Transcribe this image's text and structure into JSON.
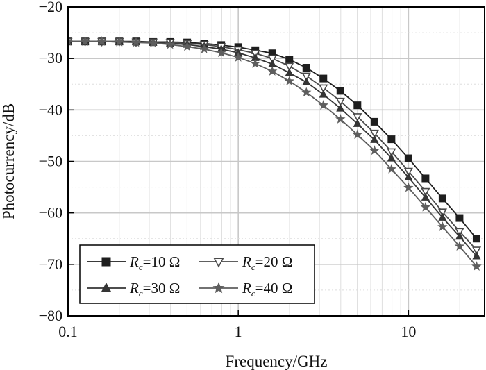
{
  "chart_data": {
    "type": "line",
    "title": "",
    "xlabel": "Frequency/GHz",
    "ylabel": "Photocurrency/dB",
    "x_scale": "log",
    "xlim": [
      0.1,
      28
    ],
    "ylim": [
      -80,
      -20
    ],
    "x_ticks": [
      0.1,
      1,
      10
    ],
    "x_tick_labels": [
      "0.1",
      "1",
      "10"
    ],
    "y_ticks": [
      -80,
      -70,
      -60,
      -50,
      -40,
      -30,
      -20
    ],
    "y_tick_labels": [
      "−80",
      "−70",
      "−60",
      "−50",
      "−40",
      "−30",
      "−20"
    ],
    "grid": true,
    "legend_position": "bottom-left",
    "x": [
      0.1,
      0.126,
      0.158,
      0.2,
      0.251,
      0.316,
      0.398,
      0.501,
      0.631,
      0.794,
      1.0,
      1.259,
      1.585,
      1.995,
      2.512,
      3.162,
      3.981,
      5.012,
      6.31,
      7.943,
      10.0,
      12.589,
      15.849,
      19.953,
      25.119
    ],
    "series": [
      {
        "name": "Rc=10 Ω",
        "label_main": "R",
        "label_sub": "c",
        "label_rest": "=10 Ω",
        "marker": "square",
        "color": "#1e1e1e",
        "values": [
          -26.7,
          -26.7,
          -26.7,
          -26.7,
          -26.7,
          -26.8,
          -26.8,
          -26.9,
          -27.1,
          -27.4,
          -27.8,
          -28.4,
          -29.0,
          -30.2,
          -31.8,
          -33.9,
          -36.3,
          -39.1,
          -42.3,
          -45.7,
          -49.4,
          -53.3,
          -57.2,
          -61.0,
          -65.0
        ]
      },
      {
        "name": "Rc=20 Ω",
        "label_main": "R",
        "label_sub": "c",
        "label_rest": "=20 Ω",
        "marker": "triangle-down",
        "color": "#4a4a4a",
        "values": [
          -26.7,
          -26.7,
          -26.7,
          -26.7,
          -26.8,
          -26.8,
          -26.9,
          -27.1,
          -27.3,
          -27.7,
          -28.3,
          -29.0,
          -30.0,
          -31.5,
          -33.4,
          -35.7,
          -38.3,
          -41.3,
          -44.5,
          -48.1,
          -51.9,
          -55.8,
          -59.8,
          -63.6,
          -67.2
        ]
      },
      {
        "name": "Rc=30 Ω",
        "label_main": "R",
        "label_sub": "c",
        "label_rest": "=30 Ω",
        "marker": "triangle-up",
        "color": "#353535",
        "values": [
          -26.7,
          -26.7,
          -26.7,
          -26.8,
          -26.8,
          -26.9,
          -27.1,
          -27.3,
          -27.7,
          -28.2,
          -28.9,
          -29.9,
          -31.1,
          -32.8,
          -34.6,
          -37.0,
          -39.7,
          -42.7,
          -45.8,
          -49.4,
          -53.1,
          -57.0,
          -60.9,
          -64.6,
          -68.4
        ]
      },
      {
        "name": "Rc=40 Ω",
        "label_main": "R",
        "label_sub": "c",
        "label_rest": "=40 Ω",
        "marker": "star",
        "color": "#5e5e5e",
        "values": [
          -26.7,
          -26.7,
          -26.7,
          -26.8,
          -26.9,
          -27.0,
          -27.3,
          -27.7,
          -28.2,
          -28.9,
          -29.8,
          -31.0,
          -32.5,
          -34.4,
          -36.6,
          -39.1,
          -41.8,
          -44.8,
          -47.9,
          -51.5,
          -55.1,
          -58.9,
          -62.7,
          -66.5,
          -70.4
        ]
      }
    ]
  }
}
